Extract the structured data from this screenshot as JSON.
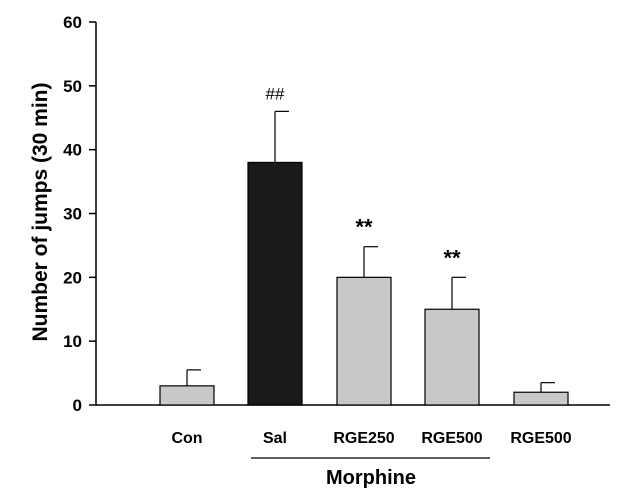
{
  "chart_data": {
    "type": "bar",
    "categories": [
      "Con",
      "Sal",
      "RGE250",
      "RGE500",
      "RGE500"
    ],
    "values": [
      3,
      38,
      20,
      15,
      2
    ],
    "errors": [
      2.5,
      8,
      4.8,
      5,
      1.5
    ],
    "annotations": [
      "",
      "##",
      "**",
      "**",
      ""
    ],
    "ylabel": "Number of jumps (30 min)",
    "ylim": [
      0,
      60
    ],
    "yticks": [
      0,
      10,
      20,
      30,
      40,
      50,
      60
    ],
    "group_label": "Morphine",
    "group_span": [
      1,
      3
    ],
    "colors": {
      "bars": [
        "#c8c8c8",
        "#1a1a1a",
        "#c8c8c8",
        "#c8c8c8",
        "#c8c8c8"
      ],
      "stroke": "#000000"
    },
    "grid": false
  }
}
